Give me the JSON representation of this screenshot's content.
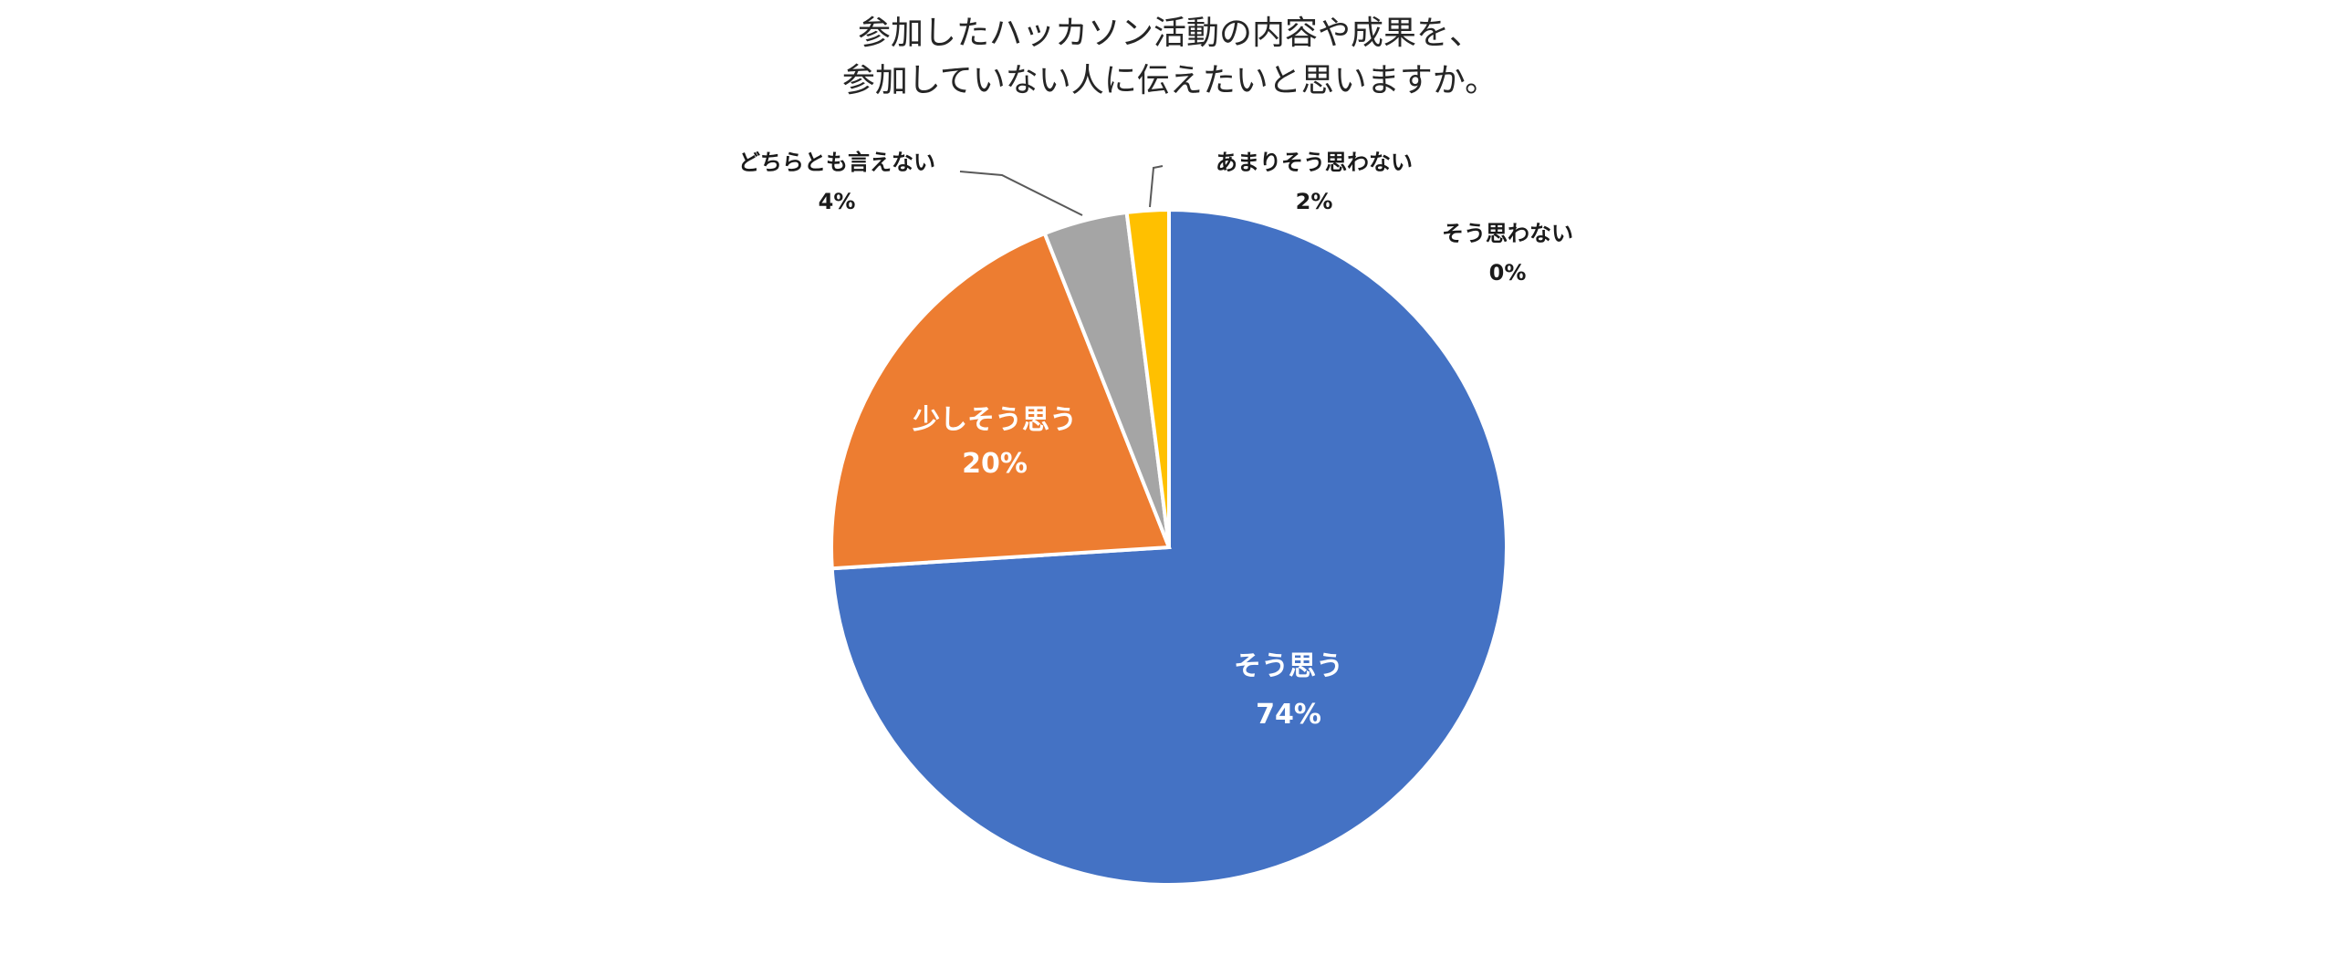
{
  "chart_data": {
    "type": "pie",
    "title": [
      "参加したハッカソン活動の内容や成果を、",
      "参加していない人に伝えたいと思いますか。"
    ],
    "start_angle_deg": 0,
    "direction": "clockwise",
    "slices": [
      {
        "label": "そう思う",
        "value": 74,
        "value_label": "74%",
        "color": "#4472C4"
      },
      {
        "label": "少しそう思う",
        "value": 20,
        "value_label": "20%",
        "color": "#ED7D31"
      },
      {
        "label": "どちらとも言えない",
        "value": 4,
        "value_label": "4%",
        "color": "#A5A5A5"
      },
      {
        "label": "あまりそう思わない",
        "value": 2,
        "value_label": "2%",
        "color": "#FFC000"
      },
      {
        "label": "そう思わない",
        "value": 0,
        "value_label": "0%",
        "color": "#5B9BD5"
      }
    ]
  }
}
